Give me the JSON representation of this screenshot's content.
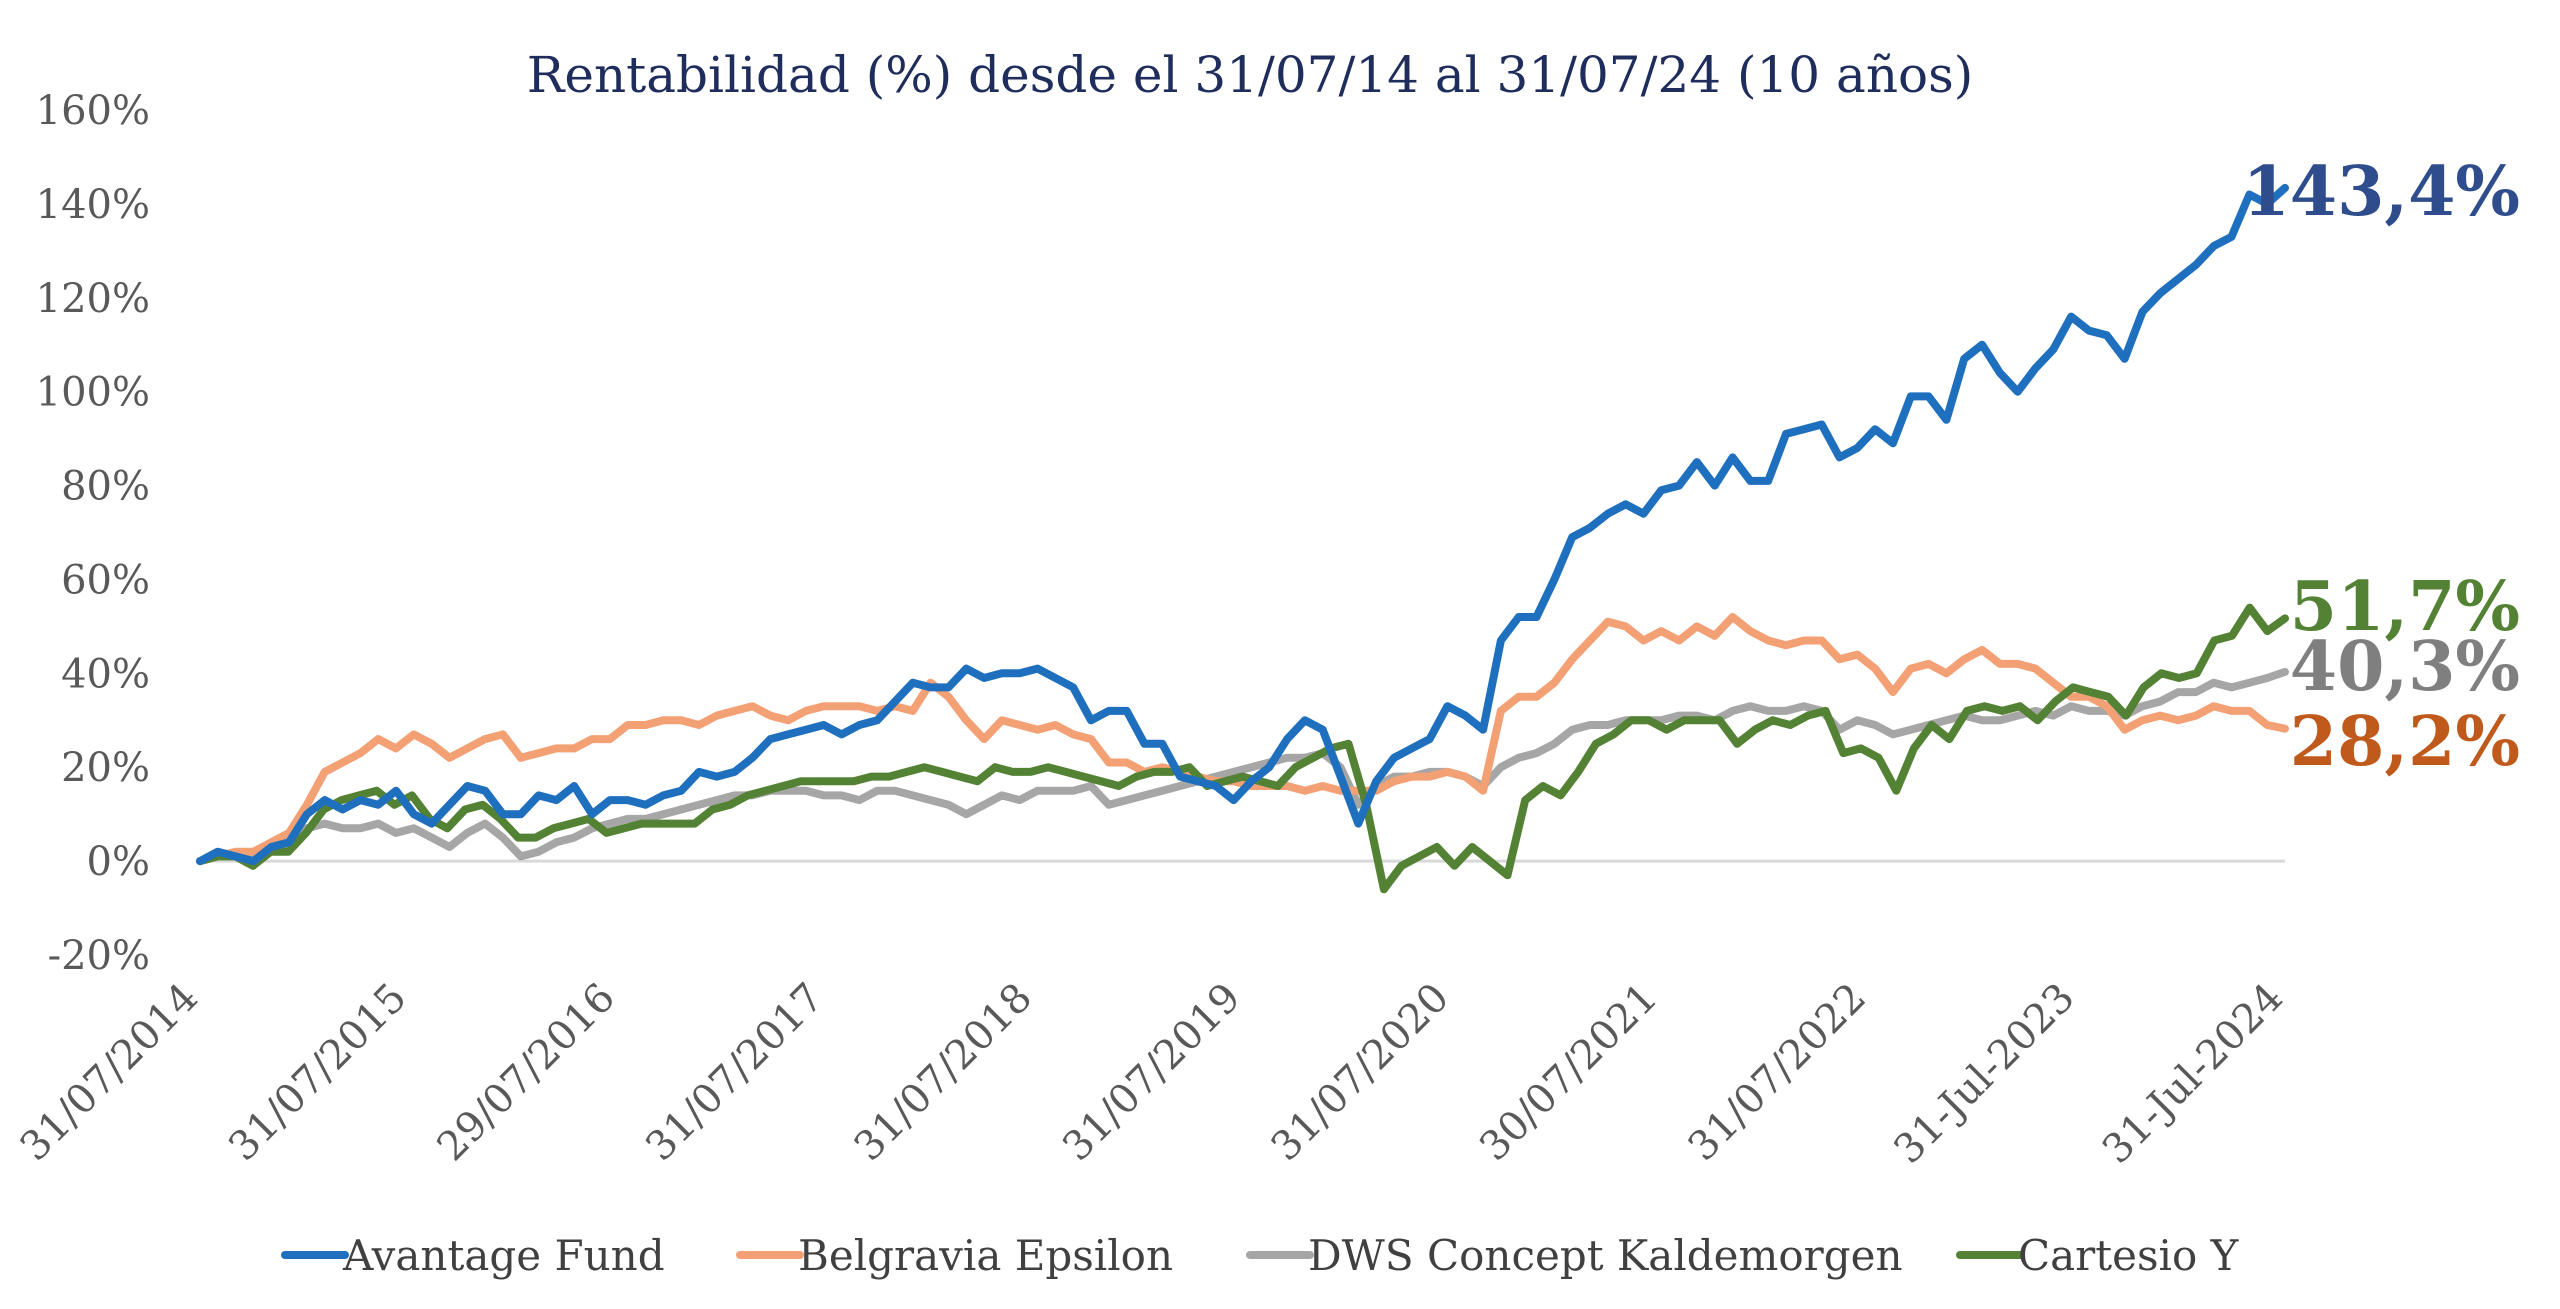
{
  "chart_data": {
    "type": "line",
    "title": "Rentabilidad (%) desde el 31/07/14 al 31/07/24 (10 años)",
    "xlabel": "",
    "ylabel": "",
    "ylim": [
      -20,
      160
    ],
    "yticks": [
      -20,
      0,
      20,
      40,
      60,
      80,
      100,
      120,
      140,
      160
    ],
    "ytick_labels": [
      "-20%",
      "0%",
      "20%",
      "40%",
      "60%",
      "80%",
      "100%",
      "120%",
      "140%",
      "160%"
    ],
    "xtick_labels": [
      "31/07/2014",
      "31/07/2015",
      "29/07/2016",
      "31/07/2017",
      "31/07/2018",
      "31/07/2019",
      "31/07/2020",
      "30/07/2021",
      "31/07/2022",
      "31-Jul-2023",
      "31-Jul-2024"
    ],
    "grid": false,
    "legend": "bottom",
    "series": [
      {
        "name": "Avantage Fund",
        "color": "#1f6fbf",
        "end_label": "143,4%",
        "end_label_color": "#2f4d8c",
        "values": [
          0,
          2,
          1,
          0,
          3,
          4,
          10,
          13,
          11,
          13,
          12,
          15,
          10,
          8,
          12,
          16,
          15,
          10,
          10,
          14,
          13,
          16,
          10,
          13,
          13,
          12,
          14,
          15,
          19,
          18,
          19,
          22,
          26,
          27,
          28,
          29,
          27,
          29,
          30,
          34,
          38,
          37,
          37,
          41,
          39,
          40,
          40,
          41,
          39,
          37,
          30,
          32,
          32,
          25,
          25,
          18,
          17,
          16,
          13,
          17,
          20,
          26,
          30,
          28,
          18,
          8,
          17,
          22,
          24,
          26,
          33,
          31,
          28,
          47,
          52,
          52,
          60,
          69,
          71,
          74,
          76,
          74,
          79,
          80,
          85,
          80,
          86,
          81,
          81,
          91,
          92,
          93,
          86,
          88,
          92,
          89,
          99,
          99,
          94,
          107,
          110,
          104,
          100,
          105,
          109,
          116,
          113,
          112,
          107,
          117,
          121,
          124,
          127,
          131,
          133,
          142,
          140,
          143.4
        ]
      },
      {
        "name": "Belgravia Epsilon",
        "color": "#f4a075",
        "end_label": "28,2%",
        "end_label_color": "#c05a1c",
        "values": [
          0,
          1,
          2,
          2,
          4,
          6,
          12,
          19,
          21,
          23,
          26,
          24,
          27,
          25,
          22,
          24,
          26,
          27,
          22,
          23,
          24,
          24,
          26,
          26,
          29,
          29,
          30,
          30,
          29,
          31,
          32,
          33,
          31,
          30,
          32,
          33,
          33,
          33,
          32,
          33,
          32,
          38,
          35,
          30,
          26,
          30,
          29,
          28,
          29,
          27,
          26,
          21,
          21,
          19,
          20,
          19,
          18,
          17,
          17,
          16,
          16,
          16,
          15,
          16,
          15,
          15,
          15,
          17,
          18,
          18,
          19,
          18,
          15,
          32,
          35,
          35,
          38,
          43,
          47,
          51,
          50,
          47,
          49,
          47,
          50,
          48,
          52,
          49,
          47,
          46,
          47,
          47,
          43,
          44,
          41,
          36,
          41,
          42,
          40,
          43,
          45,
          42,
          42,
          41,
          38,
          35,
          35,
          33,
          28,
          30,
          31,
          30,
          31,
          33,
          32,
          32,
          29,
          28.2
        ]
      },
      {
        "name": "DWS Concept Kaldemorgen",
        "color": "#a6a6a6",
        "end_label": "40,3%",
        "end_label_color": "#7f7f7f",
        "values": [
          0,
          1,
          1,
          1,
          2,
          3,
          7,
          8,
          7,
          7,
          8,
          6,
          7,
          5,
          3,
          6,
          8,
          5,
          1,
          2,
          4,
          5,
          7,
          8,
          9,
          9,
          10,
          11,
          12,
          13,
          14,
          14,
          15,
          15,
          15,
          14,
          14,
          13,
          15,
          15,
          14,
          13,
          12,
          10,
          12,
          14,
          13,
          15,
          15,
          15,
          16,
          12,
          13,
          14,
          15,
          16,
          17,
          18,
          19,
          20,
          21,
          22,
          22,
          23,
          20,
          12,
          16,
          18,
          18,
          19,
          19,
          18,
          16,
          20,
          22,
          23,
          25,
          28,
          29,
          29,
          30,
          30,
          30,
          31,
          31,
          30,
          32,
          33,
          32,
          32,
          33,
          32,
          28,
          30,
          29,
          27,
          28,
          29,
          30,
          31,
          30,
          30,
          31,
          32,
          31,
          33,
          32,
          32,
          31,
          33,
          34,
          36,
          36,
          38,
          37,
          38,
          39,
          40.3
        ]
      },
      {
        "name": "Cartesio Y",
        "color": "#548235",
        "end_label": "51,7%",
        "end_label_color": "#548235",
        "values": [
          0,
          1,
          1,
          -1,
          2,
          2,
          6,
          11,
          13,
          14,
          15,
          12,
          14,
          9,
          7,
          11,
          12,
          9,
          5,
          5,
          7,
          8,
          9,
          6,
          7,
          8,
          8,
          8,
          8,
          11,
          12,
          14,
          15,
          16,
          17,
          17,
          17,
          17,
          18,
          18,
          19,
          20,
          19,
          18,
          17,
          20,
          19,
          19,
          20,
          19,
          18,
          17,
          16,
          18,
          19,
          19,
          20,
          16,
          17,
          18,
          17,
          16,
          20,
          22,
          24,
          25,
          12,
          -6,
          -1,
          1,
          3,
          -1,
          3,
          0,
          -3,
          13,
          16,
          14,
          19,
          25,
          27,
          30,
          30,
          28,
          30,
          30,
          30,
          25,
          28,
          30,
          29,
          31,
          32,
          23,
          24,
          22,
          15,
          24,
          29,
          26,
          32,
          33,
          32,
          33,
          30,
          34,
          37,
          36,
          35,
          31,
          37,
          40,
          39,
          40,
          47,
          48,
          54,
          49,
          51.7
        ]
      }
    ]
  }
}
